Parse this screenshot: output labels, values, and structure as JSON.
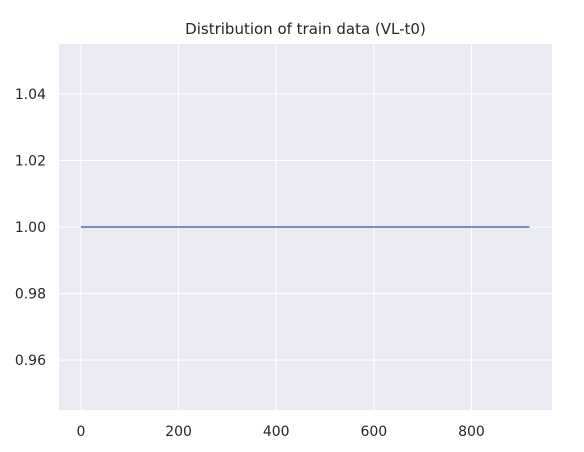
{
  "chart_data": {
    "type": "line",
    "title": "Distribution of train data (VL-t0)",
    "xlabel": "",
    "ylabel": "",
    "xlim": [
      -45,
      965
    ],
    "ylim": [
      0.945,
      1.055
    ],
    "xticks": [
      0,
      200,
      400,
      600,
      800
    ],
    "xtick_labels": [
      "0",
      "200",
      "400",
      "600",
      "800"
    ],
    "yticks": [
      0.96,
      0.98,
      1.0,
      1.02,
      1.04
    ],
    "ytick_labels": [
      "0.96",
      "0.98",
      "1.00",
      "1.02",
      "1.04"
    ],
    "grid": true,
    "legend": "none",
    "series": [
      {
        "x": [
          0,
          919
        ],
        "y": [
          1.0,
          1.0
        ],
        "color": "#4c72b0"
      }
    ]
  },
  "colors": {
    "plot_background": "#eaeaf2",
    "grid": "#ffffff",
    "line": "#4c72b0",
    "text": "#262626"
  }
}
